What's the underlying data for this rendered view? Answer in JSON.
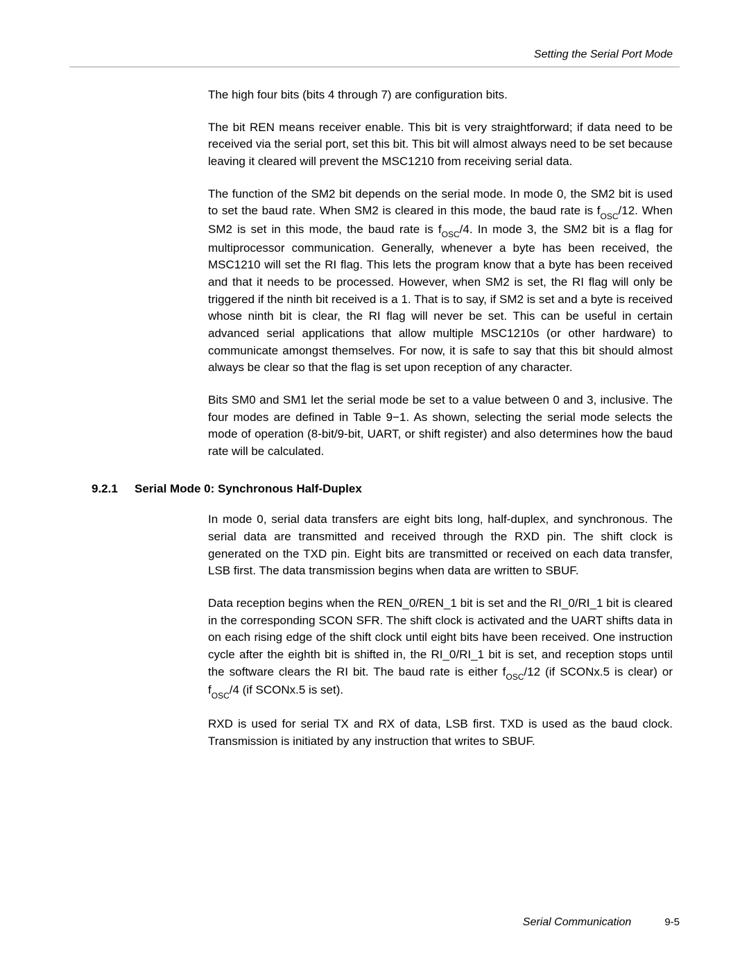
{
  "header": {
    "title": "Setting the Serial Port Mode"
  },
  "paragraphs": {
    "p1": "The high four bits (bits 4 through 7) are configuration bits.",
    "p2": "The bit REN means receiver enable. This bit is very straightforward; if data need to be received via the serial port, set this bit. This bit will almost always need to be set because leaving it cleared will prevent the MSC1210 from receiving serial data.",
    "p3_a": "The function of the SM2 bit depends on the serial mode. In mode 0, the SM2 bit is used to set the baud rate. When SM2 is cleared in this mode, the baud rate is f",
    "p3_b": "/12. When SM2 is set in this mode, the baud rate is f",
    "p3_c": "/4. In mode 3, the SM2 bit is a flag for multiprocessor communication. Generally, whenever a byte has been received, the MSC1210 will set the RI flag. This lets the program know that a byte has been received and that it needs to be processed. However, when SM2 is set, the RI flag will only be triggered if the ninth bit received is a 1. That is to say, if SM2 is set and a byte is received whose ninth bit is clear, the RI flag will never be set. This can be useful in certain advanced serial applications that allow multiple MSC1210s (or other hardware) to communicate amongst themselves. For now, it is safe to say that this bit should almost always be clear so that the flag is set upon reception of any character.",
    "p4": "Bits SM0 and SM1 let the serial mode be set to a value between 0 and 3, inclusive. The four modes are defined in Table 9−1. As shown, selecting the serial mode selects the mode of operation (8-bit/9-bit, UART, or shift register) and also determines how the baud rate will be calculated.",
    "p5": "In mode 0, serial data transfers are eight bits long, half-duplex, and synchronous. The serial data are transmitted and received through the RXD pin. The shift clock is generated on the TXD pin. Eight bits are transmitted or received on each data transfer, LSB first. The data transmission begins when data are written to SBUF.",
    "p6_a": "Data reception begins when the REN_0/REN_1 bit is set and the RI_0/RI_1 bit is cleared in the corresponding SCON SFR. The shift clock is activated and the UART shifts data in on each rising edge of the shift clock until eight bits have been received. One instruction cycle after the eighth bit is shifted in, the RI_0/RI_1 bit is set, and reception stops until the software clears the RI bit. The baud rate is either f",
    "p6_b": "/12 (if SCONx.5 is clear) or f",
    "p6_c": "/4 (if SCONx.5 is set).",
    "p7": "RXD is used for serial TX and RX of data, LSB first. TXD is used as the baud clock. Transmission is initiated by any instruction that writes to SBUF."
  },
  "osc_label": "OSC",
  "section": {
    "number": "9.2.1",
    "title": "Serial Mode 0: Synchronous Half-Duplex"
  },
  "footer": {
    "title": "Serial Communication",
    "page": "9-5"
  },
  "colors": {
    "text": "#000000",
    "rule": "#999999",
    "background": "#ffffff"
  },
  "typography": {
    "body_fontsize": 17,
    "header_fontsize": 16,
    "heading_fontsize": 17,
    "footer_fontsize": 16,
    "font_family": "Arial"
  }
}
